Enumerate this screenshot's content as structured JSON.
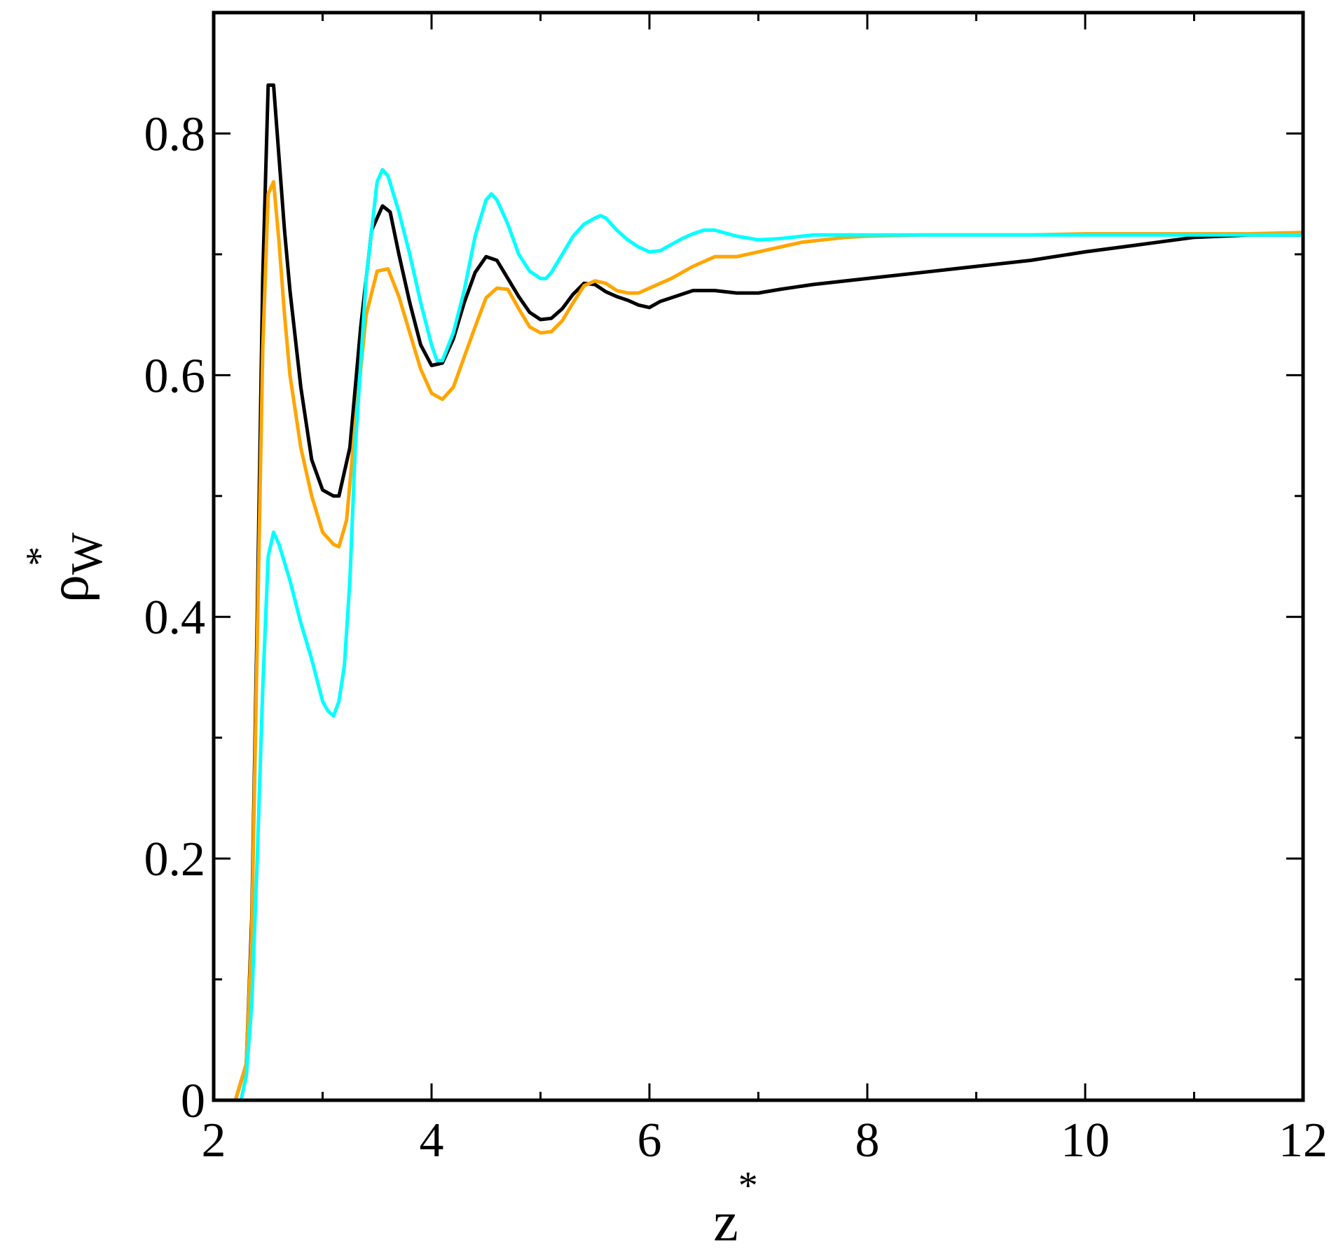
{
  "chart_data": {
    "type": "line",
    "title": "",
    "xlabel": {
      "main": "z",
      "sup": "*"
    },
    "ylabel": {
      "main": "ρ",
      "sup": "*",
      "sub": "W"
    },
    "xlim": [
      2,
      12
    ],
    "ylim": [
      0,
      0.9
    ],
    "xticks_major": [
      2,
      4,
      6,
      8,
      10,
      12
    ],
    "xticks_minor": [
      3,
      5,
      7,
      9,
      11
    ],
    "yticks_major": [
      0,
      0.2,
      0.4,
      0.6,
      0.8
    ],
    "yticks_minor": [
      0.1,
      0.3,
      0.5,
      0.7
    ],
    "xtick_labels": [
      "2",
      "4",
      "6",
      "8",
      "10",
      "12"
    ],
    "ytick_labels": [
      "0",
      "0.2",
      "0.4",
      "0.6",
      "0.8"
    ],
    "grid": false,
    "legend": "none",
    "series": [
      {
        "color": "#000000",
        "x": [
          2.2,
          2.3,
          2.35,
          2.4,
          2.45,
          2.5,
          2.55,
          2.6,
          2.65,
          2.7,
          2.8,
          2.9,
          3.0,
          3.1,
          3.15,
          3.25,
          3.35,
          3.45,
          3.55,
          3.62,
          3.7,
          3.8,
          3.9,
          4.0,
          4.1,
          4.2,
          4.3,
          4.4,
          4.5,
          4.6,
          4.7,
          4.8,
          4.9,
          5.0,
          5.1,
          5.2,
          5.3,
          5.4,
          5.5,
          5.6,
          5.7,
          5.8,
          5.9,
          6.0,
          6.1,
          6.2,
          6.4,
          6.6,
          6.8,
          7.0,
          7.2,
          7.5,
          8.0,
          8.5,
          9.0,
          9.5,
          10.0,
          10.5,
          11.0,
          11.5,
          12.0
        ],
        "y": [
          0,
          0.03,
          0.15,
          0.4,
          0.68,
          0.84,
          0.84,
          0.78,
          0.72,
          0.67,
          0.59,
          0.53,
          0.505,
          0.5,
          0.5,
          0.54,
          0.64,
          0.72,
          0.74,
          0.735,
          0.7,
          0.66,
          0.625,
          0.608,
          0.61,
          0.63,
          0.66,
          0.685,
          0.698,
          0.695,
          0.68,
          0.665,
          0.652,
          0.646,
          0.647,
          0.655,
          0.667,
          0.676,
          0.675,
          0.669,
          0.665,
          0.662,
          0.658,
          0.656,
          0.661,
          0.664,
          0.67,
          0.67,
          0.668,
          0.668,
          0.671,
          0.675,
          0.68,
          0.685,
          0.69,
          0.695,
          0.702,
          0.708,
          0.714,
          0.716,
          0.716
        ]
      },
      {
        "color": "#FFA500",
        "x": [
          2.2,
          2.3,
          2.35,
          2.4,
          2.45,
          2.5,
          2.55,
          2.6,
          2.65,
          2.7,
          2.8,
          2.9,
          3.0,
          3.1,
          3.15,
          3.22,
          3.3,
          3.4,
          3.5,
          3.6,
          3.7,
          3.8,
          3.9,
          4.0,
          4.1,
          4.2,
          4.3,
          4.4,
          4.5,
          4.6,
          4.7,
          4.8,
          4.9,
          5.0,
          5.1,
          5.2,
          5.3,
          5.4,
          5.5,
          5.6,
          5.7,
          5.8,
          5.9,
          6.0,
          6.2,
          6.4,
          6.6,
          6.8,
          7.0,
          7.2,
          7.4,
          7.6,
          7.8,
          8.0,
          8.5,
          9.0,
          9.5,
          10.0,
          10.5,
          11.0,
          11.5,
          12.0
        ],
        "y": [
          0,
          0.03,
          0.14,
          0.38,
          0.62,
          0.75,
          0.76,
          0.71,
          0.65,
          0.6,
          0.54,
          0.5,
          0.47,
          0.46,
          0.458,
          0.48,
          0.56,
          0.65,
          0.686,
          0.688,
          0.665,
          0.635,
          0.605,
          0.585,
          0.58,
          0.59,
          0.615,
          0.64,
          0.664,
          0.672,
          0.671,
          0.655,
          0.64,
          0.635,
          0.636,
          0.645,
          0.66,
          0.674,
          0.678,
          0.676,
          0.67,
          0.668,
          0.668,
          0.672,
          0.68,
          0.69,
          0.698,
          0.698,
          0.702,
          0.706,
          0.71,
          0.712,
          0.714,
          0.715,
          0.716,
          0.716,
          0.716,
          0.717,
          0.717,
          0.717,
          0.717,
          0.718
        ]
      },
      {
        "color": "#00FFFF",
        "x": [
          2.25,
          2.3,
          2.35,
          2.4,
          2.45,
          2.5,
          2.55,
          2.6,
          2.7,
          2.8,
          2.9,
          3.0,
          3.05,
          3.1,
          3.15,
          3.2,
          3.25,
          3.3,
          3.4,
          3.5,
          3.55,
          3.6,
          3.7,
          3.8,
          3.9,
          4.0,
          4.05,
          4.1,
          4.2,
          4.3,
          4.4,
          4.5,
          4.55,
          4.6,
          4.7,
          4.8,
          4.9,
          5.0,
          5.05,
          5.1,
          5.2,
          5.3,
          5.4,
          5.5,
          5.55,
          5.6,
          5.7,
          5.8,
          5.9,
          6.0,
          6.1,
          6.2,
          6.3,
          6.4,
          6.5,
          6.6,
          6.8,
          7.0,
          7.2,
          7.5,
          8.0,
          8.5,
          9.0,
          9.5,
          10.0,
          11.0,
          12.0
        ],
        "y": [
          0,
          0.02,
          0.08,
          0.2,
          0.34,
          0.45,
          0.47,
          0.46,
          0.43,
          0.395,
          0.365,
          0.33,
          0.322,
          0.318,
          0.33,
          0.36,
          0.43,
          0.54,
          0.68,
          0.76,
          0.77,
          0.765,
          0.735,
          0.7,
          0.66,
          0.625,
          0.612,
          0.612,
          0.635,
          0.67,
          0.715,
          0.745,
          0.75,
          0.745,
          0.725,
          0.7,
          0.686,
          0.68,
          0.68,
          0.685,
          0.7,
          0.715,
          0.725,
          0.73,
          0.732,
          0.73,
          0.72,
          0.712,
          0.706,
          0.702,
          0.703,
          0.708,
          0.713,
          0.717,
          0.72,
          0.72,
          0.715,
          0.712,
          0.713,
          0.716,
          0.716,
          0.716,
          0.716,
          0.716,
          0.716,
          0.716,
          0.716
        ]
      }
    ]
  }
}
